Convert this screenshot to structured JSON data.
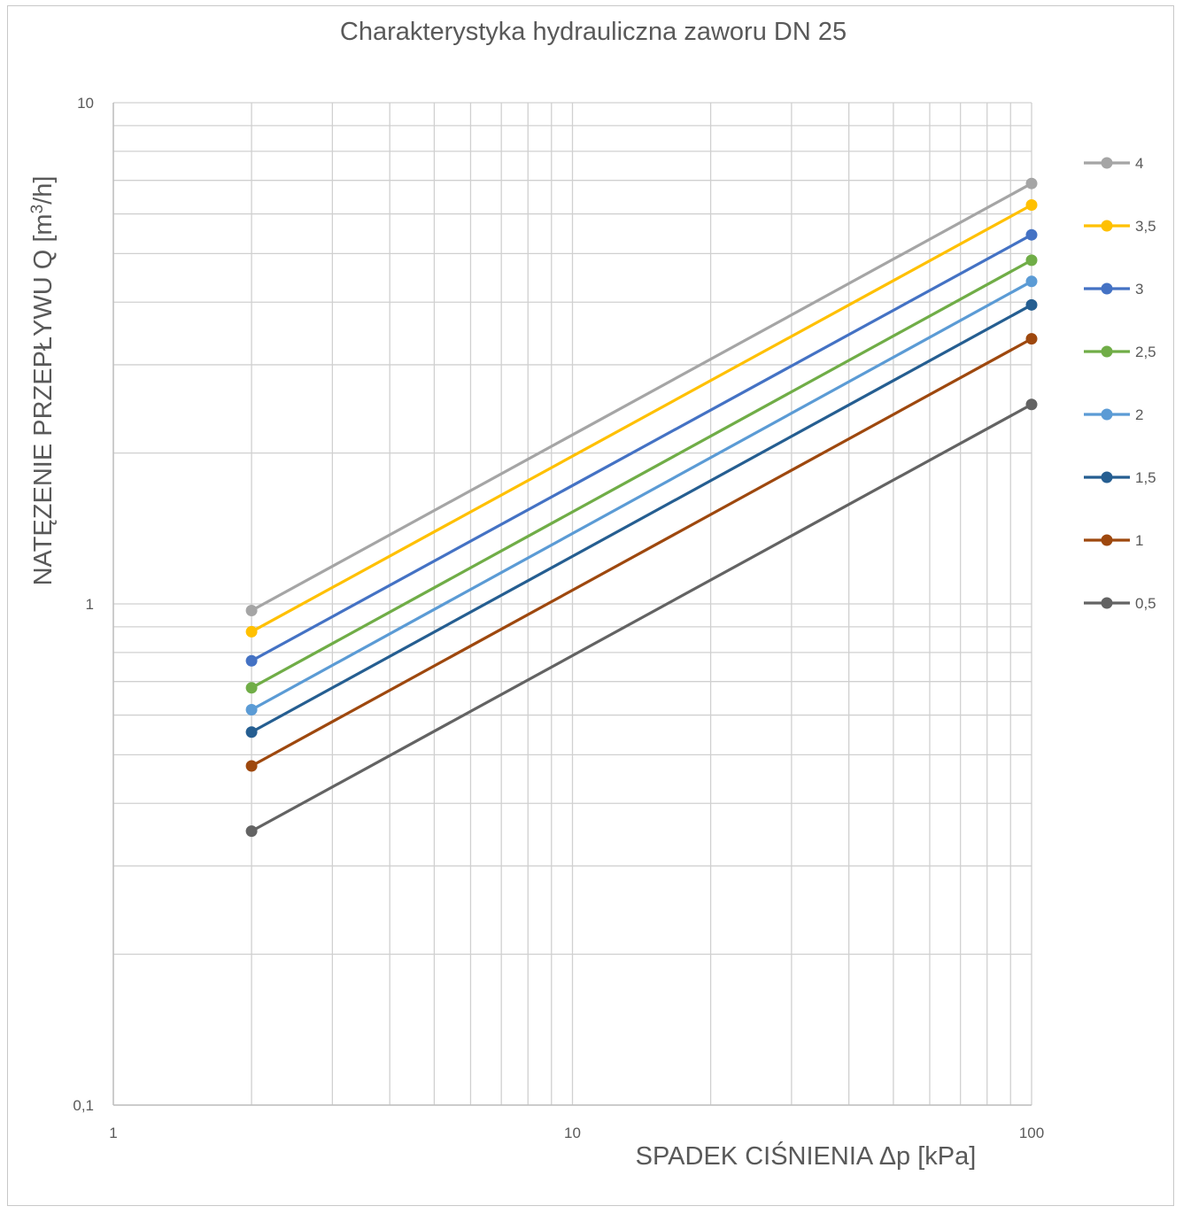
{
  "chart_data": {
    "type": "line",
    "title": "Charakterystyka hydrauliczna zaworu DN 25",
    "xlabel": "SPADEK CIŚNIENIA Δp  [kPa]",
    "ylabel": {
      "main": "NATĘZENIE PRZEPŁYWU Q  [m",
      "sup": "3",
      "tail": "/h]"
    },
    "x_scale": "log",
    "y_scale": "log",
    "xlim": [
      1,
      100
    ],
    "ylim": [
      0.1,
      10
    ],
    "x_ticks": [
      "1",
      "10",
      "100"
    ],
    "y_ticks": [
      "0,1",
      "1",
      "10"
    ],
    "grid": true,
    "legend_position": "right",
    "x": [
      2,
      100
    ],
    "series": [
      {
        "name": "4",
        "color": "#a5a5a5",
        "values": [
          0.97,
          6.9
        ]
      },
      {
        "name": "3,5",
        "color": "#ffc000",
        "values": [
          0.88,
          6.25
        ]
      },
      {
        "name": "3",
        "color": "#4472c4",
        "values": [
          0.77,
          5.45
        ]
      },
      {
        "name": "2,5",
        "color": "#70ad47",
        "values": [
          0.68,
          4.85
        ]
      },
      {
        "name": "2",
        "color": "#5b9bd5",
        "values": [
          0.615,
          4.4
        ]
      },
      {
        "name": "1,5",
        "color": "#255e91",
        "values": [
          0.555,
          3.95
        ]
      },
      {
        "name": "1",
        "color": "#9e480e",
        "values": [
          0.475,
          3.38
        ]
      },
      {
        "name": "0,5",
        "color": "#636363",
        "values": [
          0.352,
          2.5
        ]
      }
    ]
  }
}
